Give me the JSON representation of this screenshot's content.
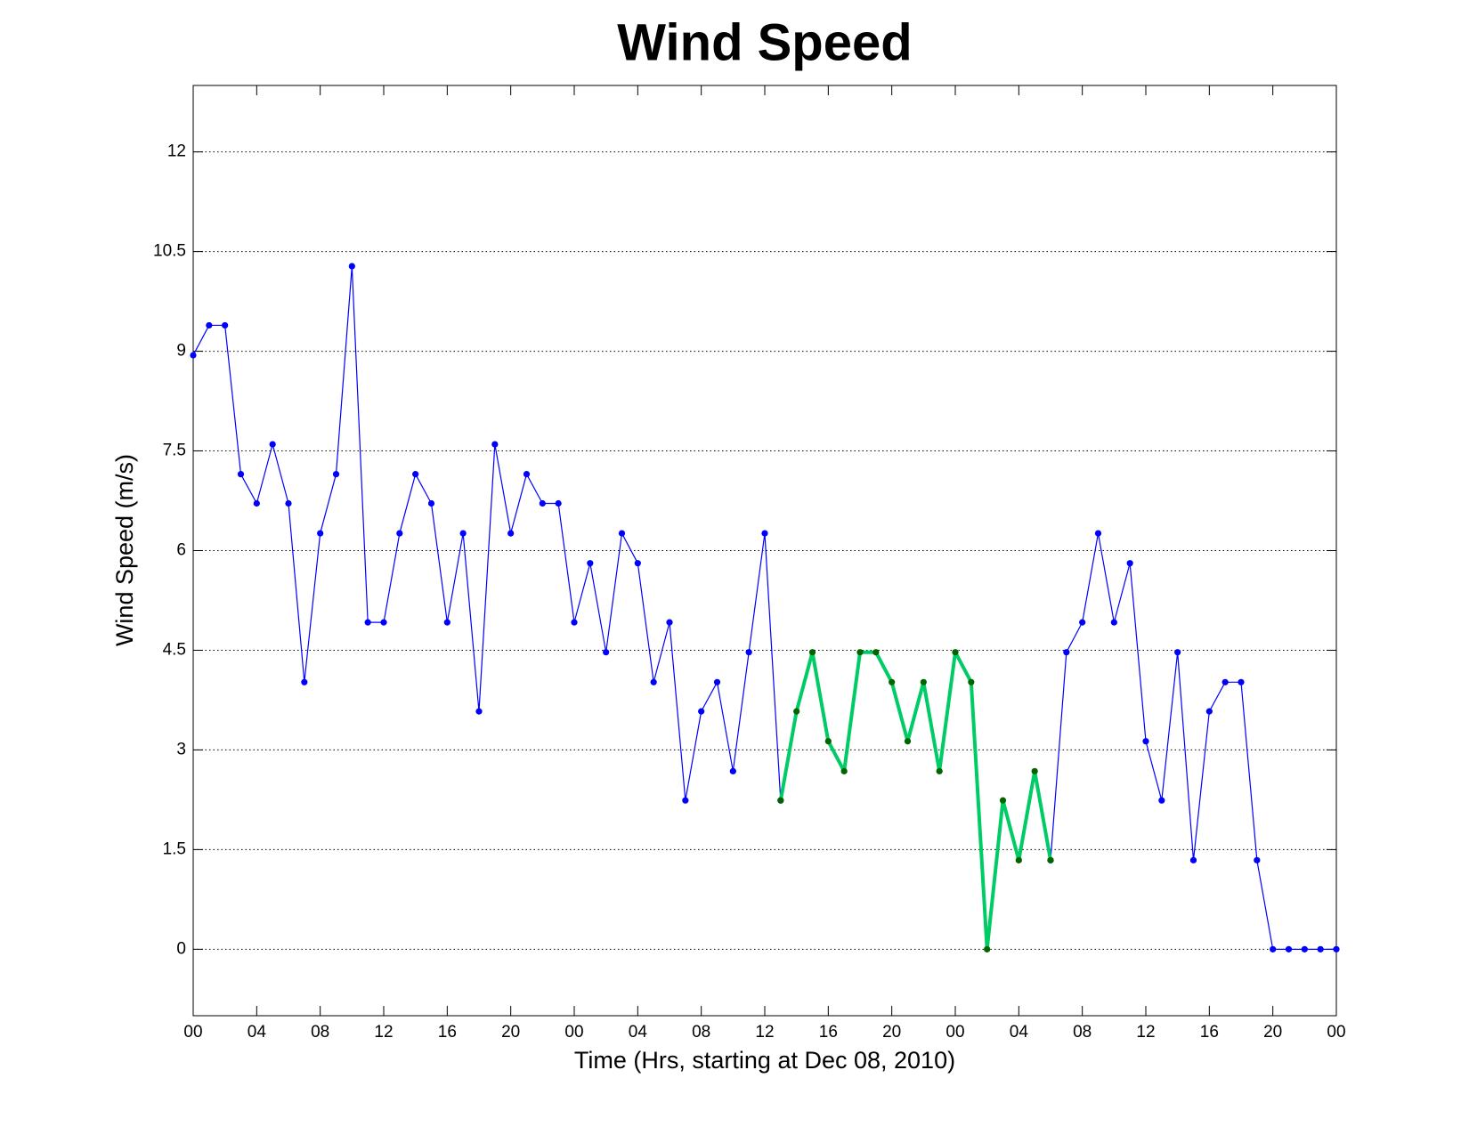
{
  "chart_data": {
    "type": "line",
    "title": "Wind Speed",
    "xlabel": "Time (Hrs, starting at Dec 08, 2010)",
    "ylabel": "Wind Speed (m/s)",
    "x": [
      0,
      1,
      2,
      3,
      4,
      5,
      6,
      7,
      8,
      9,
      10,
      11,
      12,
      13,
      14,
      15,
      16,
      17,
      18,
      19,
      20,
      21,
      22,
      23,
      24,
      25,
      26,
      27,
      28,
      29,
      30,
      31,
      32,
      33,
      34,
      35,
      36,
      37,
      38,
      39,
      40,
      41,
      42,
      43,
      44,
      45,
      46,
      47,
      48,
      49,
      50,
      51,
      52,
      53,
      54,
      55,
      56,
      57,
      58,
      59,
      60,
      61,
      62,
      63,
      64,
      65,
      66,
      67,
      68,
      69,
      70,
      71,
      72
    ],
    "series": [
      {
        "color": "#0000ff",
        "marker_color": "#0000ff",
        "line_width": 1.2,
        "values": [
          8.94,
          9.39,
          9.39,
          7.15,
          6.71,
          7.6,
          6.71,
          4.02,
          6.26,
          7.15,
          10.28,
          4.92,
          4.92,
          6.26,
          7.15,
          6.71,
          4.92,
          6.26,
          3.58,
          7.6,
          6.26,
          7.15,
          6.71,
          6.71,
          4.92,
          5.81,
          4.47,
          6.26,
          5.81,
          4.02,
          4.92,
          2.24,
          3.58,
          4.02,
          2.68,
          4.47,
          6.26,
          2.24,
          null,
          null,
          null,
          null,
          null,
          null,
          null,
          null,
          null,
          null,
          null,
          null,
          null,
          null,
          null,
          null,
          1.34,
          4.47,
          4.92,
          6.26,
          4.92,
          5.81,
          3.13,
          2.24,
          4.47,
          1.34,
          3.58,
          4.02,
          4.02,
          1.34,
          0,
          0,
          0,
          0,
          0
        ]
      },
      {
        "color": "#00cc66",
        "marker_color": "#006400",
        "line_width": 4,
        "values": [
          null,
          null,
          null,
          null,
          null,
          null,
          null,
          null,
          null,
          null,
          null,
          null,
          null,
          null,
          null,
          null,
          null,
          null,
          null,
          null,
          null,
          null,
          null,
          null,
          null,
          null,
          null,
          null,
          null,
          null,
          null,
          null,
          null,
          null,
          null,
          null,
          null,
          2.24,
          3.58,
          4.47,
          3.13,
          2.68,
          4.47,
          4.47,
          4.02,
          3.13,
          4.02,
          2.68,
          4.47,
          4.02,
          0,
          2.24,
          1.34,
          2.68,
          1.34,
          null,
          null,
          null,
          null,
          null,
          null,
          null,
          null,
          null,
          null,
          null,
          null,
          null,
          null,
          null,
          null,
          null,
          null
        ]
      }
    ],
    "xlim": [
      0,
      72
    ],
    "xticks": [
      {
        "value": 0,
        "label": "00"
      },
      {
        "value": 4,
        "label": "04"
      },
      {
        "value": 8,
        "label": "08"
      },
      {
        "value": 12,
        "label": "12"
      },
      {
        "value": 16,
        "label": "16"
      },
      {
        "value": 20,
        "label": "20"
      },
      {
        "value": 24,
        "label": "00"
      },
      {
        "value": 28,
        "label": "04"
      },
      {
        "value": 32,
        "label": "08"
      },
      {
        "value": 36,
        "label": "12"
      },
      {
        "value": 40,
        "label": "16"
      },
      {
        "value": 44,
        "label": "20"
      },
      {
        "value": 48,
        "label": "00"
      },
      {
        "value": 52,
        "label": "04"
      },
      {
        "value": 56,
        "label": "08"
      },
      {
        "value": 60,
        "label": "12"
      },
      {
        "value": 64,
        "label": "16"
      },
      {
        "value": 68,
        "label": "20"
      },
      {
        "value": 72,
        "label": "00"
      }
    ],
    "ylim": [
      -1,
      13
    ],
    "yticks": [
      0,
      1.5,
      3,
      4.5,
      6,
      7.5,
      9,
      10.5,
      12
    ],
    "ygrid": true
  }
}
